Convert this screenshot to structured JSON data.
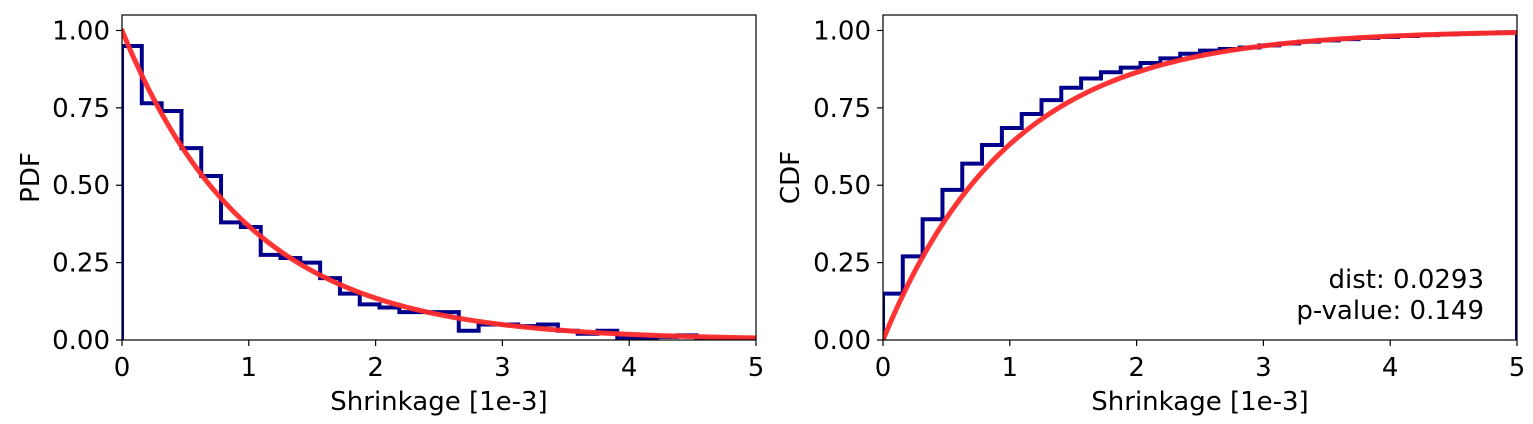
{
  "colors": {
    "histogram": "#00008b",
    "fit": "#ff2a2a",
    "frame": "#000000"
  },
  "chart_data": [
    {
      "type": "line",
      "xlabel": "Shrinkage [1e-3]",
      "ylabel": "PDF",
      "xlim": [
        0,
        5
      ],
      "ylim": [
        0,
        1.05
      ],
      "x_ticks": [
        0,
        1,
        2,
        3,
        4,
        5
      ],
      "x_tick_labels": [
        "0",
        "1",
        "2",
        "3",
        "4",
        "5"
      ],
      "y_ticks": [
        0,
        0.25,
        0.5,
        0.75,
        1.0
      ],
      "y_tick_labels": [
        "0.00",
        "0.25",
        "0.50",
        "0.75",
        "1.00"
      ],
      "grid": false,
      "series": [
        {
          "kind": "step-histogram",
          "bin_edges": [
            0,
            0.156,
            0.3125,
            0.469,
            0.625,
            0.781,
            0.9375,
            1.094,
            1.25,
            1.406,
            1.5625,
            1.719,
            1.875,
            2.031,
            2.1875,
            2.344,
            2.5,
            2.656,
            2.8125,
            2.969,
            3.125,
            3.281,
            3.4375,
            3.594,
            3.75,
            3.906,
            4.0625,
            4.219,
            4.375,
            4.531,
            4.6875,
            4.844,
            5.0
          ],
          "values": [
            0.95,
            0.765,
            0.74,
            0.62,
            0.53,
            0.38,
            0.365,
            0.275,
            0.265,
            0.25,
            0.2,
            0.15,
            0.115,
            0.105,
            0.09,
            0.09,
            0.09,
            0.03,
            0.05,
            0.05,
            0.045,
            0.05,
            0.03,
            0.02,
            0.03,
            0.005,
            0.005,
            0.01,
            0.015,
            0.005,
            0.005,
            0.005
          ]
        },
        {
          "kind": "fit-curve",
          "function": "exponential_pdf",
          "rate": 1.0
        }
      ]
    },
    {
      "type": "line",
      "xlabel": "Shrinkage [1e-3]",
      "ylabel": "CDF",
      "xlim": [
        0,
        5
      ],
      "ylim": [
        0,
        1.05
      ],
      "x_ticks": [
        0,
        1,
        2,
        3,
        4,
        5
      ],
      "x_tick_labels": [
        "0",
        "1",
        "2",
        "3",
        "4",
        "5"
      ],
      "y_ticks": [
        0,
        0.25,
        0.5,
        0.75,
        1.0
      ],
      "y_tick_labels": [
        "0.00",
        "0.25",
        "0.50",
        "0.75",
        "1.00"
      ],
      "grid": false,
      "annotations": [
        "dist: 0.0293",
        "p-value:  0.149"
      ],
      "annotation_position": "bottom-right",
      "series": [
        {
          "kind": "step-cdf",
          "bin_edges": [
            0,
            0.156,
            0.3125,
            0.469,
            0.625,
            0.781,
            0.9375,
            1.094,
            1.25,
            1.406,
            1.5625,
            1.719,
            1.875,
            2.031,
            2.1875,
            2.344,
            2.5,
            2.656,
            2.8125,
            2.969,
            3.125,
            3.281,
            3.4375,
            3.594,
            3.75,
            3.906,
            4.0625,
            4.219,
            4.375,
            4.531,
            4.6875,
            4.844,
            5.0
          ],
          "values": [
            0.15,
            0.27,
            0.39,
            0.485,
            0.57,
            0.63,
            0.685,
            0.73,
            0.775,
            0.815,
            0.845,
            0.865,
            0.88,
            0.895,
            0.91,
            0.925,
            0.935,
            0.94,
            0.945,
            0.952,
            0.958,
            0.964,
            0.968,
            0.972,
            0.976,
            0.979,
            0.982,
            0.985,
            0.988,
            0.99,
            0.992,
            0.994
          ]
        },
        {
          "kind": "fit-curve",
          "function": "exponential_cdf",
          "rate": 1.0
        }
      ]
    }
  ]
}
